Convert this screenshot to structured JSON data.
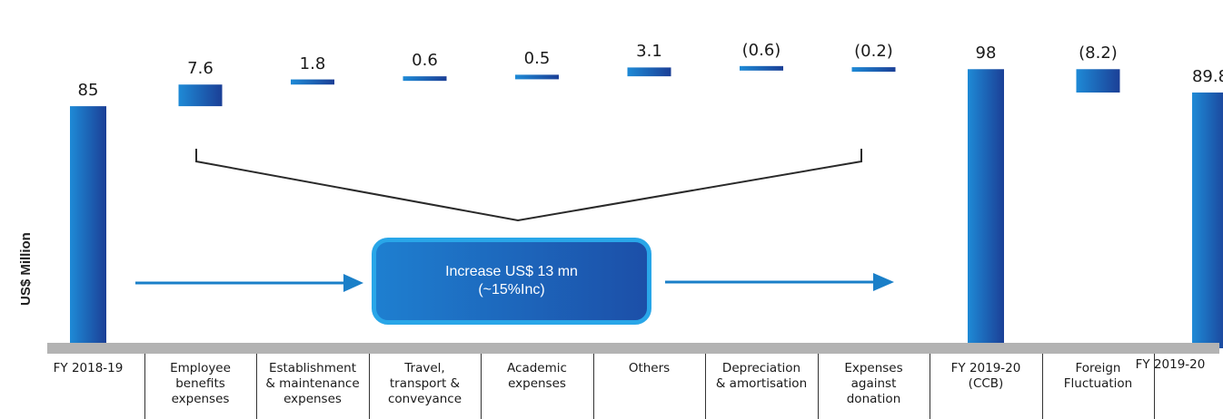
{
  "chart_data": {
    "type": "bar",
    "subtype": "waterfall",
    "ylabel": "US$ Million",
    "categories": [
      "FY 2018-19",
      "Employee benefits expenses",
      "Establishment & maintenance expenses",
      "Travel, transport & conveyance",
      "Academic expenses",
      "Others",
      "Depreciation & amortisation",
      "Expenses against donation",
      "FY 2019-20 (CCB)",
      "Foreign Fluctuation",
      "FY 2019-20"
    ],
    "category_lines": [
      [
        "FY 2018-19"
      ],
      [
        "Employee",
        "benefits",
        "expenses"
      ],
      [
        "Establishment",
        "& maintenance",
        "expenses"
      ],
      [
        "Travel,",
        "transport &",
        "conveyance"
      ],
      [
        "Academic",
        "expenses"
      ],
      [
        "Others"
      ],
      [
        "Depreciation",
        "& amortisation"
      ],
      [
        "Expenses",
        "against",
        "donation"
      ],
      [
        "FY 2019-20",
        "(CCB)"
      ],
      [
        "Foreign",
        "Fluctuation"
      ],
      [
        "FY 2019-20"
      ]
    ],
    "values": [
      85,
      7.6,
      1.8,
      0.6,
      0.5,
      3.1,
      -0.6,
      -0.2,
      98,
      -8.2,
      89.8
    ],
    "bar_kinds": [
      "total",
      "delta",
      "delta",
      "delta",
      "delta",
      "delta",
      "delta",
      "delta",
      "total",
      "delta",
      "total"
    ],
    "value_labels": [
      "85",
      "7.6",
      "1.8",
      "0.6",
      "0.5",
      "3.1",
      "(0.6)",
      "(0.2)",
      "98",
      "(8.2)",
      "89.8"
    ],
    "colors": {
      "bar_light": "#1e8ad6",
      "bar_dark": "#1b3f96",
      "axis": "#b3b3b3",
      "callout_border": "#29a6e8",
      "arrow": "#1a7fc8"
    },
    "annotation": {
      "line1": "Increase US$ 13 mn",
      "line2": "(~15%Inc)"
    },
    "grid": false,
    "legend": "none"
  }
}
